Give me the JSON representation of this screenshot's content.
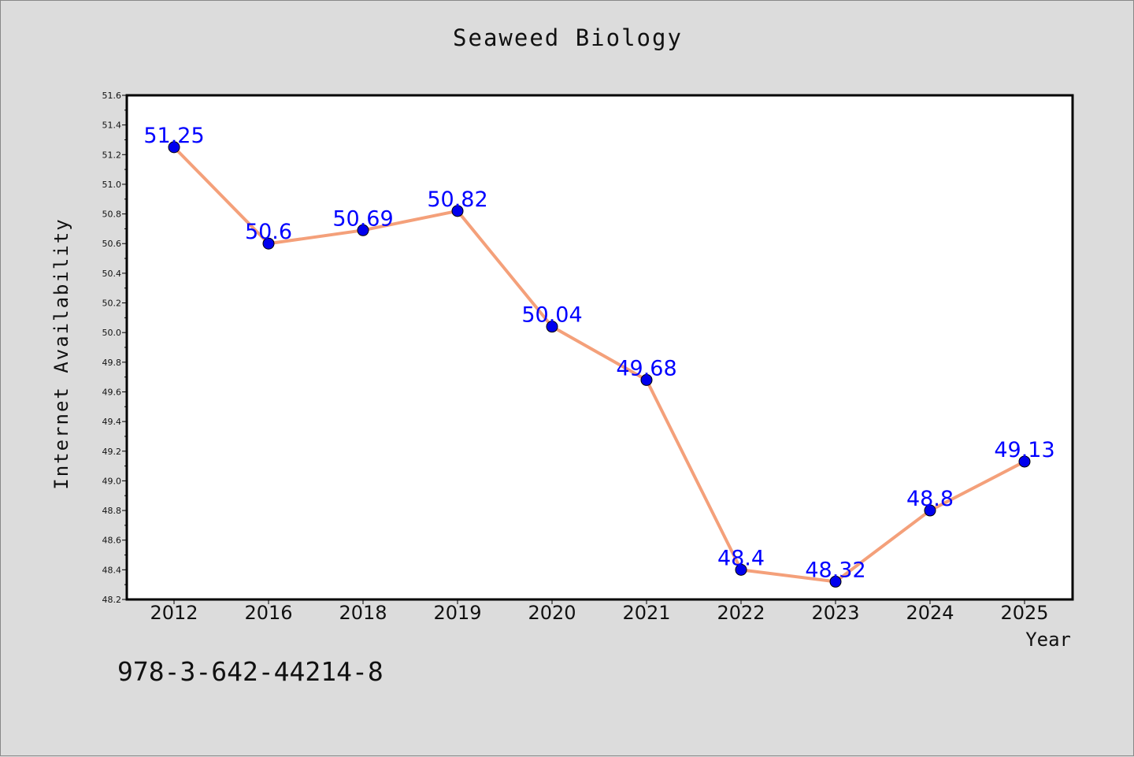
{
  "chart_data": {
    "type": "line",
    "title": "Seaweed Biology",
    "xlabel": "Year",
    "ylabel": "Internet Availability",
    "categories": [
      "2012",
      "2016",
      "2018",
      "2019",
      "2020",
      "2021",
      "2022",
      "2023",
      "2024",
      "2025"
    ],
    "series": [
      {
        "values": [
          51.25,
          50.6,
          50.69,
          50.82,
          50.04,
          49.68,
          48.4,
          48.32,
          48.8,
          49.13
        ]
      }
    ],
    "data_labels": [
      "51.25",
      "50.6",
      "50.69",
      "50.82",
      "50.04",
      "49.68",
      "48.4",
      "48.32",
      "48.8",
      "49.13"
    ],
    "ylim": [
      48.2,
      51.6
    ],
    "yticks": [
      "48.2",
      "48.4",
      "48.6",
      "48.8",
      "49.0",
      "49.2",
      "49.4",
      "49.6",
      "49.8",
      "50.0",
      "50.2",
      "50.4",
      "50.6",
      "50.8",
      "51.0",
      "51.2",
      "51.4",
      "51.6"
    ],
    "grid": false,
    "legend": "none",
    "colors": {
      "line": "#f4a07a",
      "marker": "#0000ee",
      "label": "#0000ff"
    }
  },
  "footer": {
    "code": "978-3-642-44214-8"
  }
}
